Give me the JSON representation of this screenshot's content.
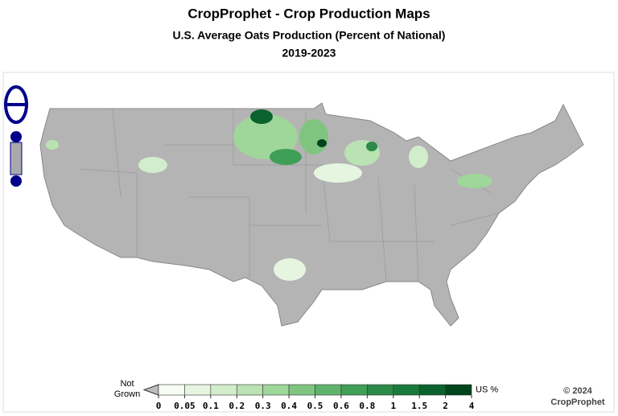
{
  "header": {
    "title": "CropProphet - Crop Production Maps",
    "subtitle": "U.S. Average Oats Production (Percent of National)",
    "period": "2019-2023"
  },
  "legend": {
    "not_grown": [
      "Not",
      "Grown"
    ],
    "unit": "US %",
    "ticks": [
      0,
      0.05,
      0.1,
      0.2,
      0.3,
      0.4,
      0.5,
      0.6,
      0.8,
      1,
      1.5,
      2,
      4
    ],
    "colors": [
      "#f7fcf5",
      "#e5f5e0",
      "#d2edcb",
      "#b9e3b2",
      "#9fd69a",
      "#80c57f",
      "#5fb46b",
      "#3f9f57",
      "#2d8a49",
      "#1a7a3c",
      "#0b622e",
      "#00441b"
    ],
    "not_grown_color": "#bdbdbd"
  },
  "footer": {
    "copyright": "© 2024",
    "brand": "CropProphet"
  }
}
